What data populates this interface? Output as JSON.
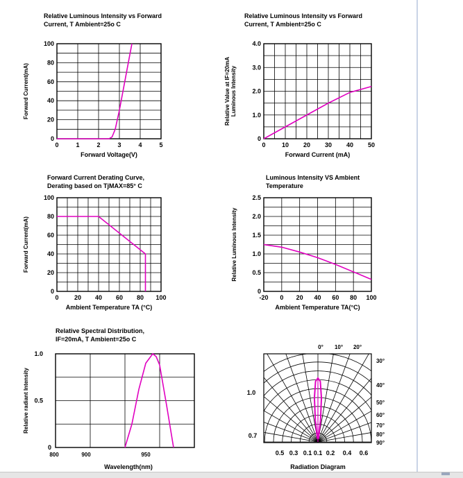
{
  "chart_data": [
    {
      "id": "c1",
      "type": "line",
      "title": [
        "Relative Luminous Intensity vs Forward",
        "Current, T Ambient=25o C"
      ],
      "xlabel": "Forward Voltage(V)",
      "ylabel": "Forward Current(mA)",
      "xlim": [
        0,
        5
      ],
      "ylim": [
        0,
        100
      ],
      "xticks": [
        "0",
        "1",
        "2",
        "3",
        "4",
        "5"
      ],
      "yticks": [
        "0",
        "20",
        "40",
        "60",
        "80",
        "100"
      ],
      "grid": true,
      "series": [
        {
          "x": [
            0,
            2.5,
            2.65,
            2.8,
            3.0,
            3.3,
            3.6
          ],
          "y": [
            0,
            0,
            2,
            10,
            30,
            65,
            100
          ],
          "color": "#e000c0"
        }
      ]
    },
    {
      "id": "c2",
      "type": "line",
      "title": [
        "Relative Luminous Intensity vs Forward",
        "Current, T Ambient=25o C"
      ],
      "xlabel": "Forward Current (mA)",
      "ylabel": [
        "Relative Value at IF=20mA",
        "Luminous Intensity"
      ],
      "xlim": [
        0,
        50
      ],
      "ylim": [
        0,
        4
      ],
      "xticks": [
        "0",
        "10",
        "20",
        "30",
        "40",
        "50"
      ],
      "yticks": [
        "0",
        "1.0",
        "2.0",
        "3.0",
        "4.0"
      ],
      "grid": true,
      "series": [
        {
          "x": [
            0,
            10,
            20,
            30,
            40,
            50
          ],
          "y": [
            0,
            0.5,
            1.0,
            1.5,
            1.95,
            2.2
          ],
          "color": "#e000c0"
        }
      ]
    },
    {
      "id": "c3",
      "type": "line",
      "title": [
        "Forward Current Derating Curve,",
        "Derating based on TjMAX=85° C"
      ],
      "xlabel": "Ambient Temperature TA (°C)",
      "ylabel": "Forward Current(mA)",
      "xlim": [
        0,
        100
      ],
      "ylim": [
        0,
        100
      ],
      "xticks": [
        "0",
        "20",
        "40",
        "60",
        "80",
        "100"
      ],
      "yticks": [
        "0",
        "20",
        "40",
        "60",
        "80",
        "100"
      ],
      "grid": true,
      "series": [
        {
          "x": [
            0,
            40,
            85,
            85
          ],
          "y": [
            80,
            80,
            40,
            0
          ],
          "color": "#e000c0"
        }
      ]
    },
    {
      "id": "c4",
      "type": "line",
      "title": [
        "Luminous Intensity VS Ambient",
        "Temperature"
      ],
      "xlabel": "Ambient Temperature TA(°C)",
      "ylabel": "Relative Luminous Intensity",
      "xlim": [
        -20,
        100
      ],
      "ylim": [
        0,
        2.5
      ],
      "xticks": [
        "-20",
        "0",
        "20",
        "40",
        "60",
        "80",
        "100"
      ],
      "yticks": [
        "0",
        "0.5",
        "1.0",
        "1.5",
        "2.0",
        "2.5"
      ],
      "grid": true,
      "series": [
        {
          "x": [
            -20,
            0,
            20,
            40,
            60,
            80,
            100
          ],
          "y": [
            1.25,
            1.18,
            1.05,
            0.9,
            0.72,
            0.52,
            0.32
          ],
          "color": "#e000c0"
        }
      ]
    },
    {
      "id": "c5",
      "type": "line",
      "title": [
        "Relative Spectral Distribution,",
        "IF=20mA, T Ambient=25o C"
      ],
      "xlabel": "Wavelength(nm)",
      "ylabel": "Relative radiant Intensity",
      "xlim": [
        800,
        1000
      ],
      "ylim": [
        0,
        1.0
      ],
      "xticks": [
        "800",
        "900",
        "950"
      ],
      "yticks": [
        "0",
        "0.5",
        "1.0"
      ],
      "grid": true,
      "series": [
        {
          "x": [
            900,
            910,
            920,
            930,
            940,
            945,
            950,
            960,
            970
          ],
          "y": [
            0,
            0.25,
            0.62,
            0.9,
            1.0,
            0.97,
            0.88,
            0.45,
            0
          ],
          "color": "#e000c0"
        }
      ]
    },
    {
      "id": "c6",
      "type": "polar",
      "title": "",
      "xlabel": "Radiation Diagram",
      "angle_labels": [
        "0°",
        "10°",
        "20°",
        "30°",
        "40°",
        "50°",
        "60°",
        "70°",
        "80°",
        "90°"
      ],
      "radial_labels": [
        "1.0",
        "0.7"
      ],
      "bottom_labels": [
        "0.5",
        "0.3",
        "0.1",
        "0.1",
        "0.2",
        "0.4",
        "0.6"
      ],
      "series": [
        {
          "angle": [
            0,
            5,
            10,
            15,
            20
          ],
          "r": [
            1.0,
            0.95,
            0.7,
            0.35,
            0.05
          ],
          "color": "#e000c0"
        }
      ]
    }
  ]
}
